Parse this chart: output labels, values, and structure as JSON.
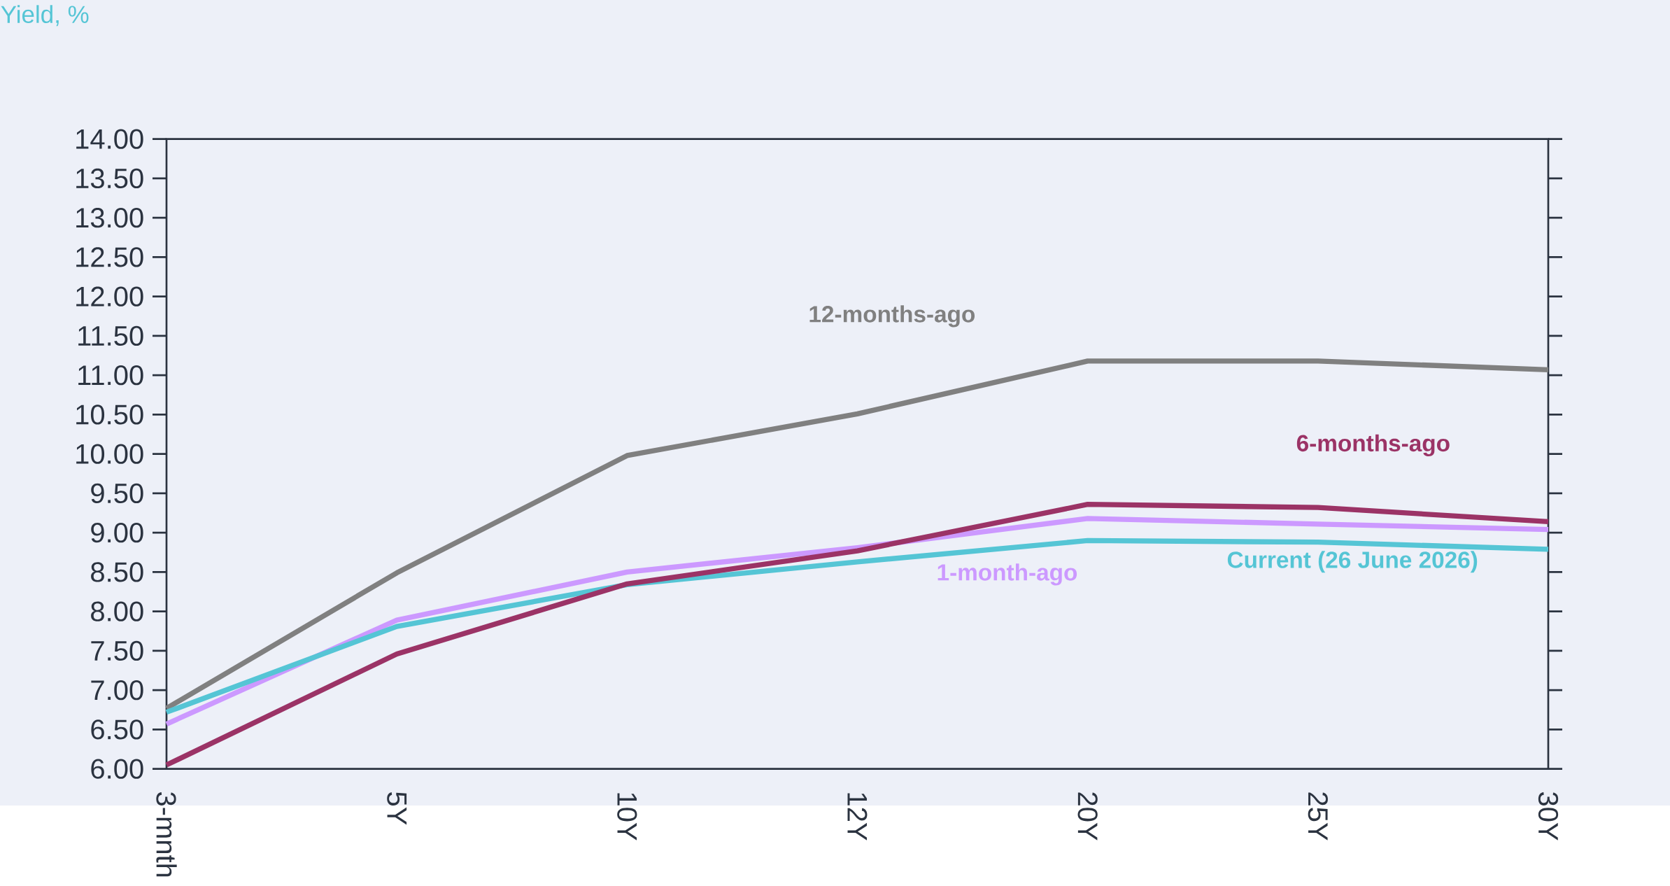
{
  "chart_data": {
    "type": "line",
    "ylabel": "Yield, %",
    "categories": [
      "3-mnth",
      "5Y",
      "10Y",
      "12Y",
      "20Y",
      "25Y",
      "30Y"
    ],
    "ylim": [
      6,
      14
    ],
    "yticks": [
      {
        "value": 6,
        "label": "6.00"
      },
      {
        "value": 6.5,
        "label": "6.50"
      },
      {
        "value": 7,
        "label": "7.00"
      },
      {
        "value": 7.5,
        "label": "7.50"
      },
      {
        "value": 8,
        "label": "8.00"
      },
      {
        "value": 8.5,
        "label": "8.50"
      },
      {
        "value": 9,
        "label": "9.00"
      },
      {
        "value": 9.5,
        "label": "9.50"
      },
      {
        "value": 10,
        "label": "10.00"
      },
      {
        "value": 10.5,
        "label": "10.50"
      },
      {
        "value": 11,
        "label": "11.00"
      },
      {
        "value": 11.5,
        "label": "11.50"
      },
      {
        "value": 12,
        "label": "12.00"
      },
      {
        "value": 12.5,
        "label": "12.50"
      },
      {
        "value": 13,
        "label": "13.00"
      },
      {
        "value": 13.5,
        "label": "13.50"
      },
      {
        "value": 14,
        "label": "14.00"
      }
    ],
    "grid": false,
    "legend": false,
    "marker": "none",
    "line_style": "solid",
    "series": [
      {
        "name": "12-months-ago",
        "color": "#808080",
        "values": [
          6.77,
          8.49,
          9.98,
          10.51,
          11.18,
          11.18,
          11.07
        ]
      },
      {
        "name": "1-month-ago",
        "color": "#cc99ff",
        "values": [
          6.57,
          7.89,
          8.5,
          8.81,
          9.18,
          9.11,
          9.04
        ]
      },
      {
        "name": "Current (26 June 2026)",
        "color": "#55c5d5",
        "values": [
          6.72,
          7.81,
          8.34,
          8.63,
          8.9,
          8.88,
          8.79
        ]
      },
      {
        "name": "6-months-ago",
        "color": "#9b3366",
        "values": [
          6.05,
          7.46,
          8.35,
          8.77,
          9.36,
          9.32,
          9.14
        ]
      }
    ]
  }
}
